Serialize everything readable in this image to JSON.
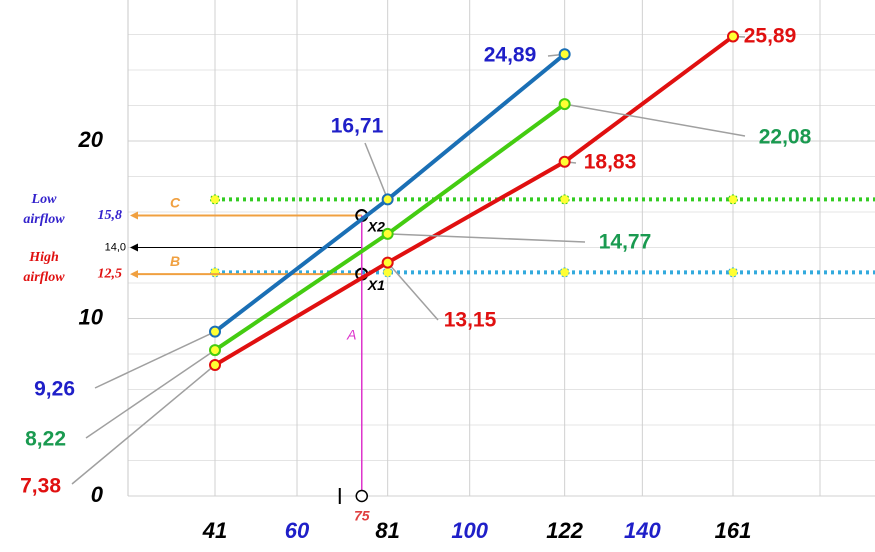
{
  "chart_data": {
    "type": "line",
    "x": [
      41,
      81,
      122,
      161
    ],
    "xlim": [
      21,
      194
    ],
    "ylim": [
      0,
      28
    ],
    "xticks": [
      41,
      60,
      81,
      100,
      122,
      140,
      161
    ],
    "xtick_colors": [
      "#000000",
      "#1f1fc8",
      "#000000",
      "#1f1fc8",
      "#000000",
      "#1f1fc8",
      "#000000"
    ],
    "yticks": [
      0,
      10,
      20
    ],
    "yminor": [
      2,
      4,
      6,
      8,
      12,
      14,
      16,
      18,
      22,
      24,
      26
    ],
    "grid": true,
    "series": [
      {
        "color": "#1a6fb5",
        "label_color": "#1f1fc8",
        "values": [
          9.26,
          16.71,
          24.89,
          null
        ],
        "value_labels": [
          "9,26",
          "16,71",
          "24,89",
          null
        ]
      },
      {
        "color": "#44cc11",
        "label_color": "#1a9a50",
        "values": [
          8.22,
          14.77,
          22.08,
          null
        ],
        "value_labels": [
          "8,22",
          "14,77",
          "22,08",
          null
        ]
      },
      {
        "color": "#e01010",
        "label_color": "#e01010",
        "values": [
          7.38,
          13.15,
          18.83,
          25.89
        ],
        "value_labels": [
          "7,38",
          "13,15",
          "18,83",
          "25,89"
        ]
      }
    ],
    "dotted_lines": [
      {
        "value": 16.71,
        "color": "#33cc22"
      },
      {
        "value": 12.6,
        "color": "#33aadd"
      }
    ],
    "levels": [
      {
        "value": 15.8,
        "label": "15,8",
        "letter": "C",
        "name": "Low airflow",
        "color": "#f0a040",
        "label_color": "#3322cc",
        "point": "X2"
      },
      {
        "value": 14.0,
        "label": "14,0",
        "color": "#000000",
        "label_color": "#000000"
      },
      {
        "value": 12.5,
        "label": "12,5",
        "letter": "B",
        "name": "High airflow",
        "color": "#f0a040",
        "label_color": "#e01010",
        "point": "X1"
      }
    ],
    "operating_x": {
      "value": 75,
      "label": "75",
      "letter": "A",
      "color": "#dd33cc"
    }
  }
}
